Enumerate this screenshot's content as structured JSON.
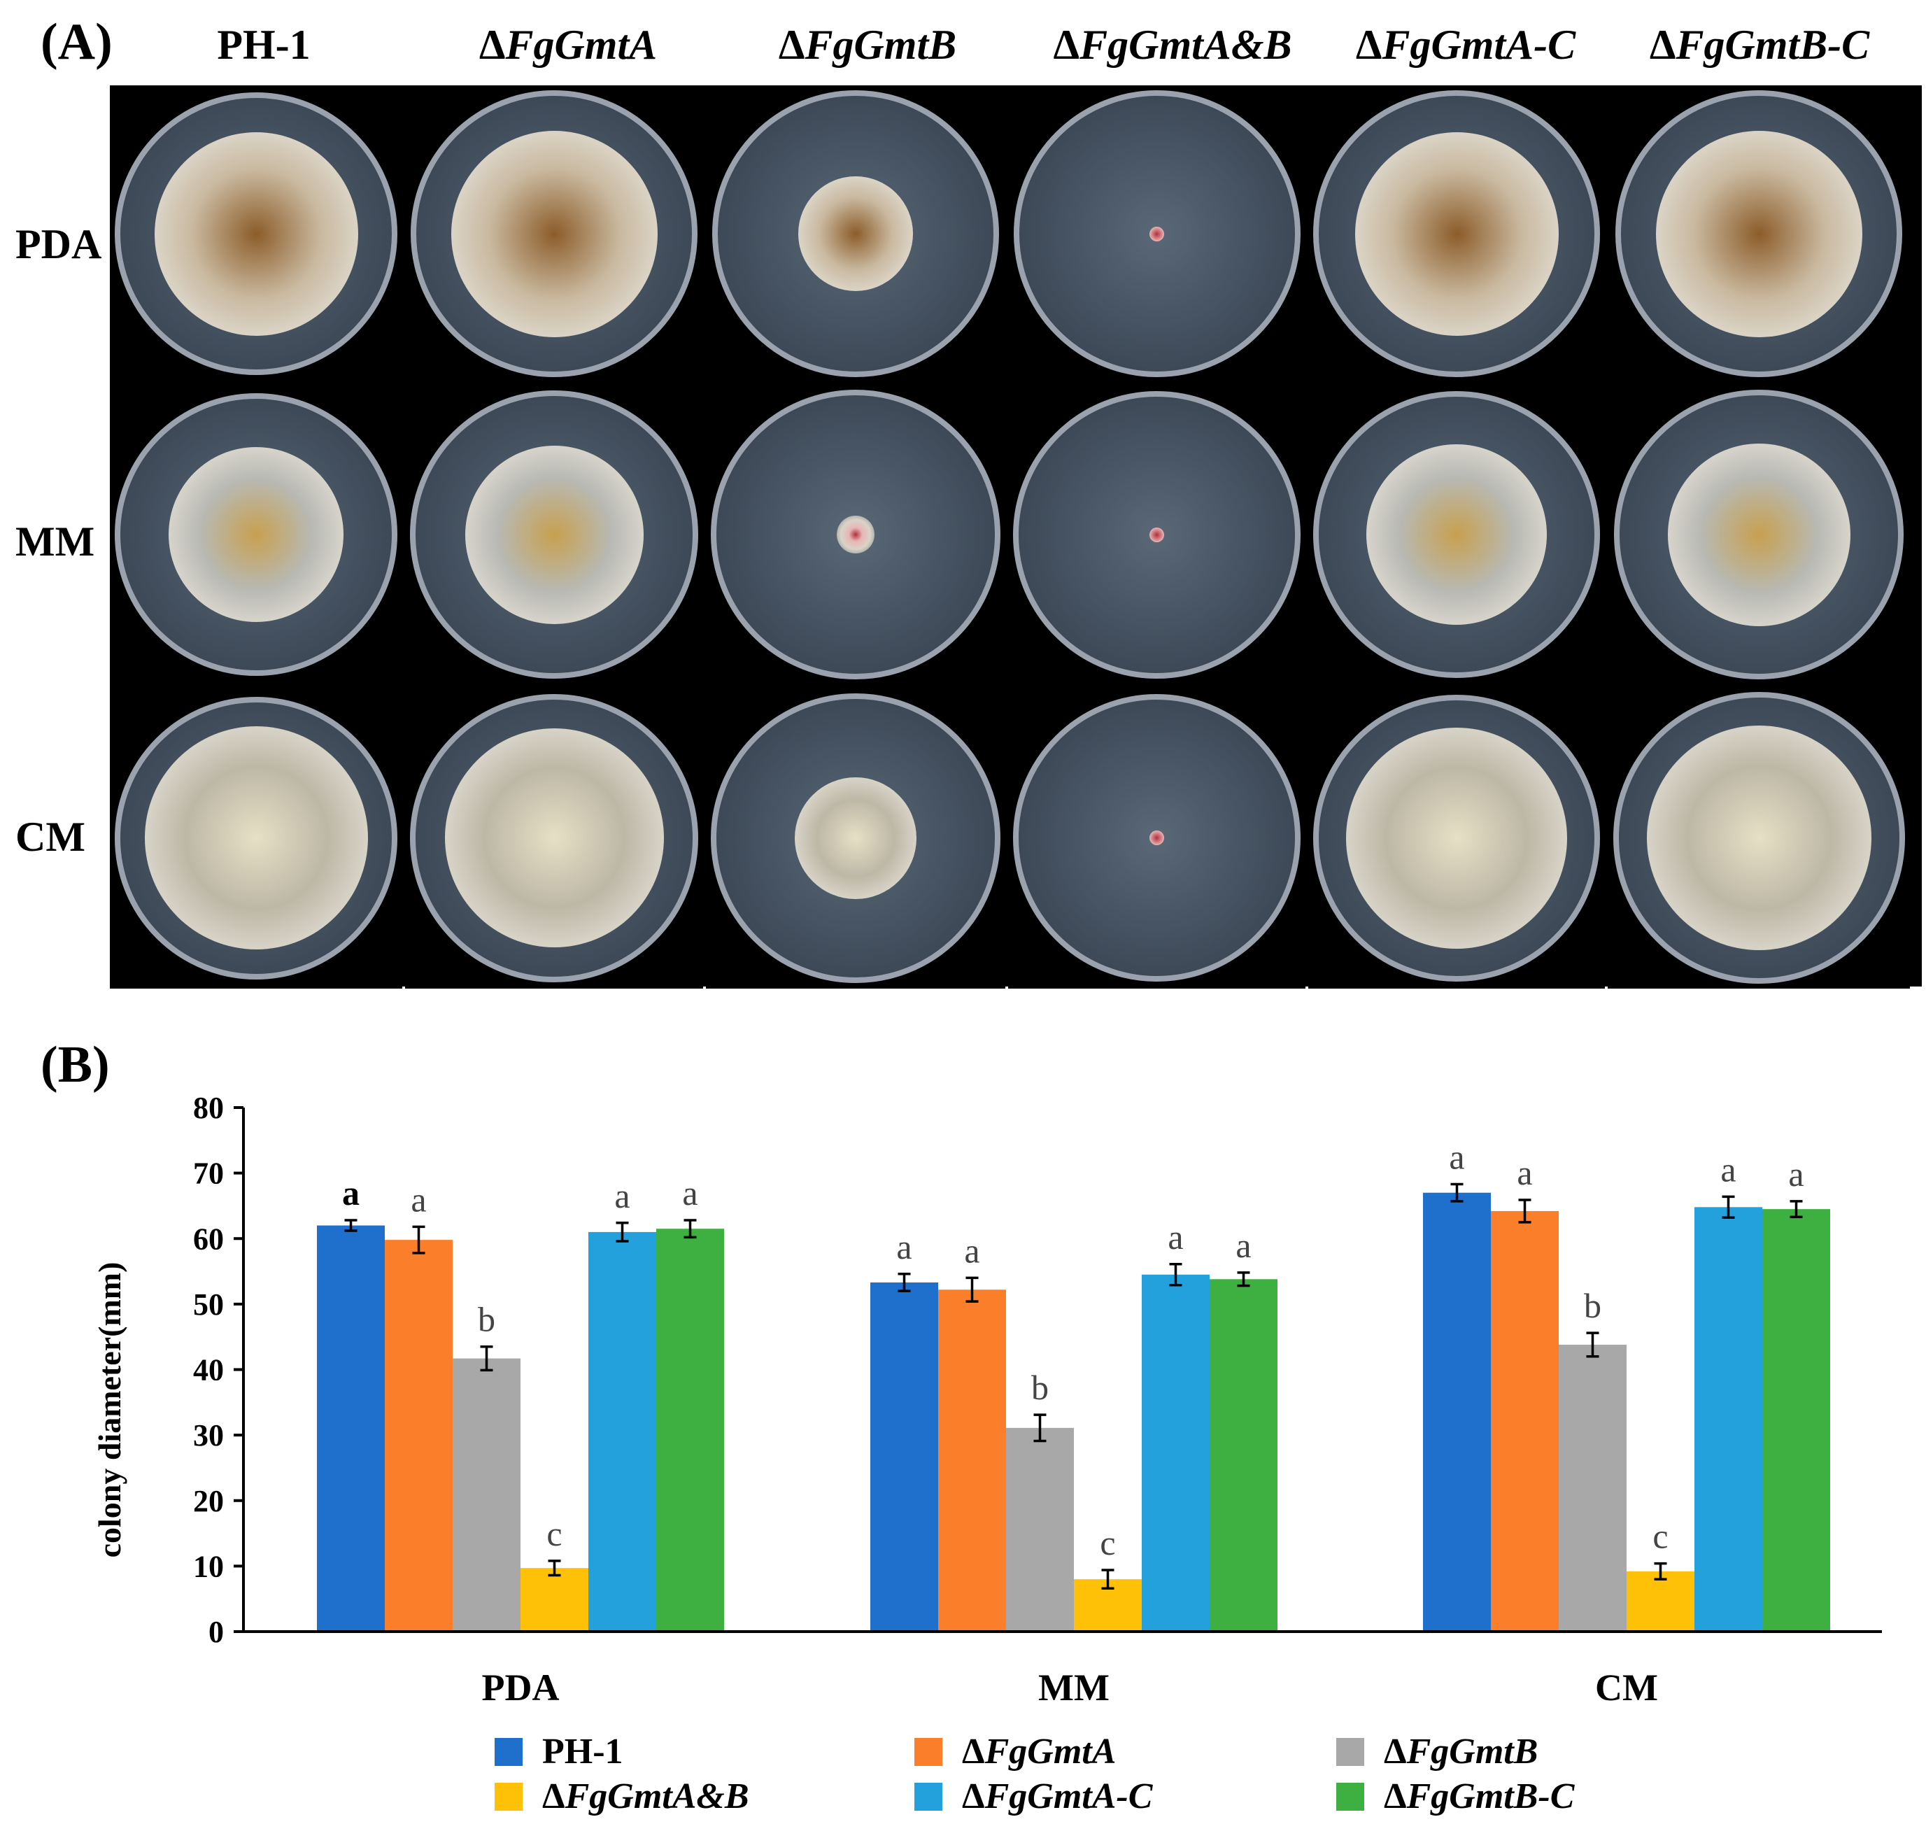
{
  "panel_a": {
    "label": "(A)",
    "strains": [
      {
        "prefix": "",
        "name": "PH-1",
        "italic": false
      },
      {
        "prefix": "Δ",
        "name": "FgGmtA",
        "italic": true
      },
      {
        "prefix": "Δ",
        "name": "FgGmtB",
        "italic": true
      },
      {
        "prefix": "Δ",
        "name": "FgGmtA&B",
        "italic": true
      },
      {
        "prefix": "Δ",
        "name": "FgGmtA-C",
        "italic": true
      },
      {
        "prefix": "Δ",
        "name": "FgGmtB-C",
        "italic": true
      }
    ],
    "media": [
      "PDA",
      "MM",
      "CM"
    ]
  },
  "panel_b": {
    "label": "(B)"
  },
  "chart_data": {
    "type": "bar",
    "title": "",
    "xlabel": "",
    "ylabel": "colony diameter(mm)",
    "ylim": [
      0,
      80
    ],
    "yticks": [
      0,
      10,
      20,
      30,
      40,
      50,
      60,
      70,
      80
    ],
    "categories": [
      "PDA",
      "MM",
      "CM"
    ],
    "legend_position": "bottom",
    "grid": false,
    "series": [
      {
        "name": "PH-1",
        "prefix": "",
        "label": "PH-1",
        "italic": false,
        "color": "#1f6fcd",
        "values": [
          62.0,
          53.3,
          67.0
        ],
        "errors": [
          0.8,
          1.3,
          1.3
        ],
        "letters": [
          "a",
          "a",
          "a"
        ]
      },
      {
        "name": "ΔFgGmtA",
        "prefix": "Δ",
        "label": "FgGmtA",
        "italic": true,
        "color": "#fb7e2a",
        "values": [
          59.8,
          52.2,
          64.2
        ],
        "errors": [
          2.0,
          1.8,
          1.7
        ],
        "letters": [
          "a",
          "a",
          "a"
        ]
      },
      {
        "name": "ΔFgGmtB",
        "prefix": "Δ",
        "label": "FgGmtB",
        "italic": true,
        "color": "#a8a8a8",
        "values": [
          41.7,
          31.1,
          43.8
        ],
        "errors": [
          1.8,
          2.0,
          1.8
        ],
        "letters": [
          "b",
          "b",
          "b"
        ]
      },
      {
        "name": "ΔFgGmtA&B",
        "prefix": "Δ",
        "label": "FgGmtA&B",
        "italic": true,
        "color": "#ffc107",
        "values": [
          9.7,
          8.0,
          9.2
        ],
        "errors": [
          1.1,
          1.4,
          1.2
        ],
        "letters": [
          "c",
          "c",
          "c"
        ]
      },
      {
        "name": "ΔFgGmtA-C",
        "prefix": "Δ",
        "label": "FgGmtA-C",
        "italic": true,
        "color": "#22a1dc",
        "values": [
          61.0,
          54.5,
          64.8
        ],
        "errors": [
          1.4,
          1.6,
          1.6
        ],
        "letters": [
          "a",
          "a",
          "a"
        ]
      },
      {
        "name": "ΔFgGmtB-C",
        "prefix": "Δ",
        "label": "FgGmtB-C",
        "italic": true,
        "color": "#3db041",
        "values": [
          61.5,
          53.8,
          64.5
        ],
        "errors": [
          1.3,
          1.0,
          1.2
        ],
        "letters": [
          "a",
          "a",
          "a"
        ]
      }
    ]
  },
  "plate_photos": {
    "colony_fraction_of_dish": [
      [
        0.72,
        0.72,
        0.4,
        0.05,
        0.71,
        0.72
      ],
      [
        0.62,
        0.62,
        0.13,
        0.05,
        0.63,
        0.63
      ],
      [
        0.79,
        0.76,
        0.42,
        0.05,
        0.77,
        0.77
      ]
    ],
    "colors": {
      "dish": "#3d4957",
      "dish_rim": "#9aa3ad",
      "colony_pda": "#c9b9a0",
      "colony_mm": "#b8b9b3",
      "colony_cm": "#bdb7a6",
      "center_pda": "#8c5d2a",
      "center_mm": "#c7a050",
      "center_cm": "#e6e0c5",
      "small_colony": "#e8b4b4",
      "small_colony_center": "#b0303c"
    }
  }
}
